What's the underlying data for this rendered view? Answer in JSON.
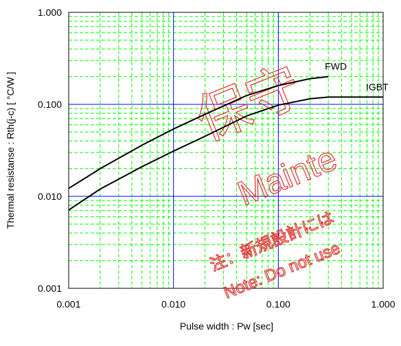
{
  "chart_data": {
    "type": "line",
    "x_label": "Pulse width : Pw [sec]",
    "y_label": "Thermal resistanse : Rth(j-c) [ °C/W ]",
    "x": [
      0.001,
      0.002,
      0.005,
      0.01,
      0.02,
      0.05,
      0.1,
      0.2,
      0.3,
      0.5,
      1
    ],
    "series": [
      {
        "name": "FWD",
        "color": "#000000",
        "values": [
          0.0122,
          0.02,
          0.036,
          0.054,
          0.078,
          0.125,
          0.16,
          0.19,
          0.2,
          null,
          null
        ]
      },
      {
        "name": "IGBT",
        "color": "#000000",
        "values": [
          0.0071,
          0.012,
          0.021,
          0.031,
          0.045,
          0.075,
          0.098,
          0.115,
          0.12,
          0.12,
          0.12
        ]
      }
    ],
    "xlim": [
      0.001,
      1
    ],
    "ylim": [
      0.001,
      1
    ],
    "log_x": true,
    "log_y": true,
    "xticks": [
      {
        "value": 0.001,
        "label": "0.001"
      },
      {
        "value": 0.01,
        "label": "0.010"
      },
      {
        "value": 0.1,
        "label": "0.100"
      },
      {
        "value": 1,
        "label": "1.000"
      }
    ],
    "yticks": [
      {
        "value": 0.001,
        "label": "0.001"
      },
      {
        "value": 0.01,
        "label": "0.010"
      },
      {
        "value": 0.1,
        "label": "0.100"
      },
      {
        "value": 1,
        "label": "1.000"
      }
    ],
    "grid": true,
    "minor_grid": true,
    "grid_color": "#0000ff",
    "minor_grid_color": "#00ff00",
    "watermark": [
      "保守",
      "Mainte",
      "注：新規設計には",
      "Note: Do not use"
    ],
    "watermark_color": "#e03030"
  }
}
